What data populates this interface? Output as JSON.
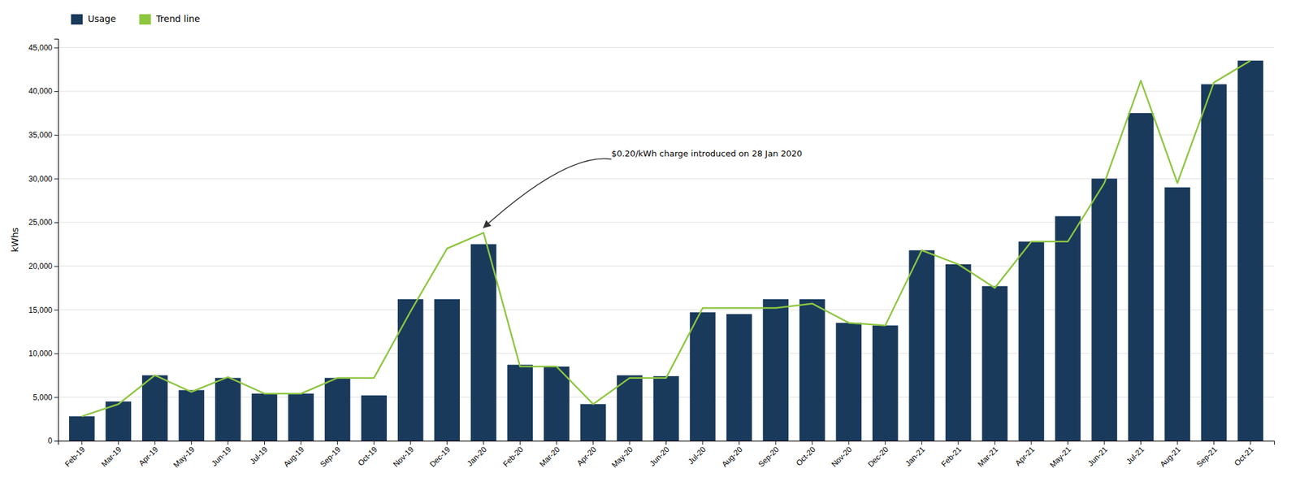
{
  "chart_data": {
    "type": "bar",
    "categories": [
      "Feb-19",
      "Mar-19",
      "Apr-19",
      "May-19",
      "Jun-19",
      "Jul-19",
      "Aug-19",
      "Sep-19",
      "Oct-19",
      "Nov-19",
      "Dec-19",
      "Jan-20",
      "Feb-20",
      "Mar-20",
      "Apr-20",
      "May-20",
      "Jun-20",
      "Jul-20",
      "Aug-20",
      "Sep-20",
      "Oct-20",
      "Nov-20",
      "Dec-20",
      "Jan-21",
      "Feb-21",
      "Mar-21",
      "Apr-21",
      "May-21",
      "Jun-21",
      "Jul-21",
      "Aug-21",
      "Sep-21",
      "Oct-21"
    ],
    "series": [
      {
        "name": "Usage",
        "type": "bar",
        "color": "#1a3a5c",
        "values": [
          2800,
          4500,
          7500,
          5800,
          7200,
          5400,
          5400,
          7200,
          5200,
          16200,
          16200,
          22500,
          8700,
          8500,
          4200,
          7500,
          7400,
          14700,
          14500,
          16200,
          16200,
          13500,
          13200,
          21800,
          20200,
          17700,
          22800,
          25700,
          30000,
          37500,
          29000,
          40800,
          43500
        ]
      },
      {
        "name": "Trend line",
        "type": "line",
        "color": "#8dc63f",
        "values": [
          2800,
          4200,
          7500,
          5600,
          7300,
          5400,
          5400,
          7200,
          7200,
          14800,
          22000,
          23800,
          8500,
          8500,
          4200,
          7200,
          7200,
          15200,
          15200,
          15200,
          15700,
          13500,
          13200,
          21800,
          20200,
          17500,
          22800,
          22800,
          29500,
          41200,
          29500,
          41000,
          43500
        ]
      }
    ],
    "y_label": "kWhs",
    "ylim": [
      0,
      46000
    ],
    "yticks": [
      0,
      {
        "value": 5000,
        "label": "5,000"
      },
      {
        "value": 10000,
        "label": "10,000"
      },
      {
        "value": 15000,
        "label": "15,000"
      },
      {
        "value": 20000,
        "label": "20,000"
      },
      {
        "value": 25000,
        "label": "25,000"
      },
      {
        "value": 30000,
        "label": "30,000"
      },
      {
        "value": 35000,
        "label": "35,000"
      },
      {
        "value": 40000,
        "label": "40,000"
      },
      {
        "value": 45000,
        "label": "45,000"
      }
    ],
    "annotations": [
      {
        "text": "$0.20/kWh charge introduced on 28 Jan 2020",
        "x": "Jan-20"
      }
    ],
    "grid": true,
    "legend": "upper left"
  }
}
